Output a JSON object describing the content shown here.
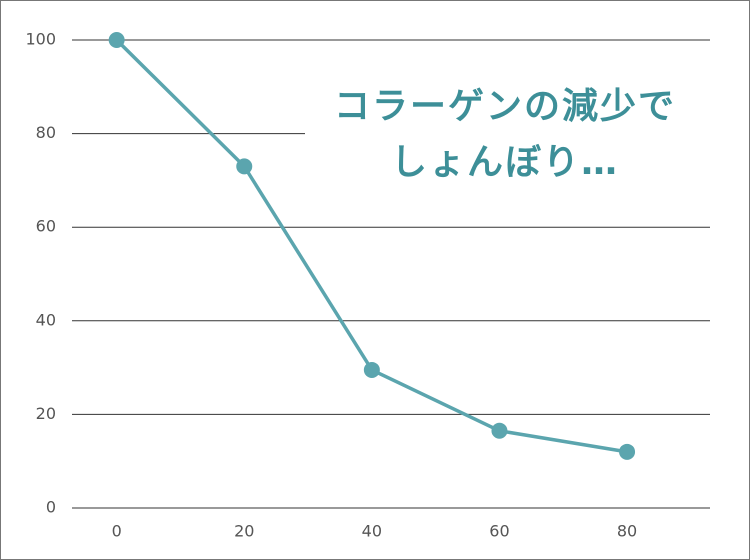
{
  "chart_data": {
    "type": "line",
    "annotation": [
      "コラーゲンの減少で",
      "しょんぼり…"
    ],
    "x": [
      0,
      20,
      40,
      60,
      80
    ],
    "series": [
      {
        "color": "#5ba5ae",
        "values": [
          100,
          73,
          29.5,
          16.5,
          12
        ]
      }
    ],
    "xlim": [
      -7,
      93
    ],
    "xticks": [
      0,
      20,
      40,
      60,
      80
    ],
    "ylim": [
      0,
      100
    ],
    "yticks": [
      0,
      20,
      40,
      60,
      80,
      100
    ],
    "grid": true
  }
}
